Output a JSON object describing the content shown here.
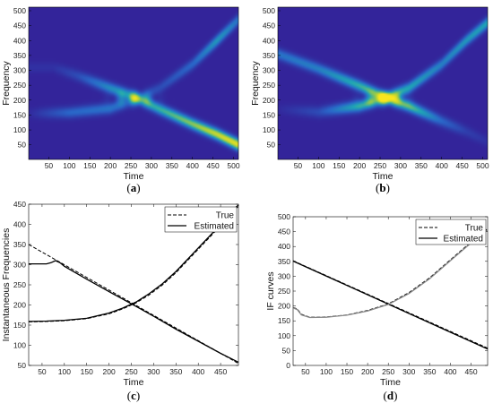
{
  "chart_data": [
    {
      "id": "a",
      "type": "heatmap",
      "caption": "a",
      "xlabel": "Time",
      "ylabel": "Frequency",
      "xlim": [
        1,
        512
      ],
      "ylim": [
        1,
        512
      ],
      "xticks": [
        50,
        100,
        150,
        200,
        250,
        300,
        350,
        400,
        450,
        500
      ],
      "yticks": [
        50,
        100,
        150,
        200,
        250,
        300,
        350,
        400,
        450,
        500
      ],
      "colormap": [
        "#33249a",
        "#2a67c9",
        "#1fa6b5",
        "#a9cf3b",
        "#f9e51e"
      ],
      "ridges": [
        {
          "points": [
            [
              1,
              155
            ],
            [
              100,
              158
            ],
            [
              200,
              172
            ],
            [
              260,
              200
            ],
            [
              320,
              240
            ],
            [
              400,
              320
            ],
            [
              460,
              400
            ],
            [
              512,
              470
            ]
          ],
          "amplitude": [
            0.02,
            0.25,
            0.3,
            0.2,
            0.15,
            0.25,
            0.45,
            0.3
          ]
        },
        {
          "points": [
            [
              60,
              310
            ],
            [
              120,
              282
            ],
            [
              200,
              240
            ],
            [
              260,
              210
            ],
            [
              320,
              170
            ],
            [
              400,
              120
            ],
            [
              460,
              85
            ],
            [
              512,
              50
            ]
          ],
          "amplitude": [
            0.05,
            0.15,
            0.4,
            0.5,
            0.55,
            0.7,
            0.85,
            0.95
          ]
        }
      ]
    },
    {
      "id": "b",
      "type": "heatmap",
      "caption": "b",
      "xlabel": "Time",
      "ylabel": "Frequency",
      "xlim": [
        1,
        512
      ],
      "ylim": [
        1,
        512
      ],
      "xticks": [
        50,
        100,
        150,
        200,
        250,
        300,
        350,
        400,
        450,
        500
      ],
      "yticks": [
        50,
        100,
        150,
        200,
        250,
        300,
        350,
        400,
        450,
        500
      ],
      "colormap": [
        "#33249a",
        "#2a67c9",
        "#1fa6b5",
        "#a9cf3b",
        "#f9e51e"
      ],
      "ridges": [
        {
          "points": [
            [
              1,
              355
            ],
            [
              100,
              305
            ],
            [
              200,
              248
            ],
            [
              260,
              210
            ],
            [
              320,
              180
            ],
            [
              400,
              130
            ],
            [
              460,
              95
            ],
            [
              512,
              60
            ]
          ],
          "amplitude": [
            0.3,
            0.35,
            0.55,
            0.7,
            0.65,
            0.25,
            0.1,
            0.05
          ]
        },
        {
          "points": [
            [
              1,
              170
            ],
            [
              100,
              160
            ],
            [
              200,
              180
            ],
            [
              260,
              205
            ],
            [
              320,
              240
            ],
            [
              400,
              320
            ],
            [
              460,
              400
            ],
            [
              512,
              460
            ]
          ],
          "amplitude": [
            0.02,
            0.15,
            0.55,
            0.6,
            0.5,
            0.35,
            0.45,
            0.5
          ]
        }
      ]
    },
    {
      "id": "c",
      "type": "line",
      "caption": "c",
      "xlabel": "Time",
      "ylabel": "Instantaneous Frequencies",
      "xlim": [
        20,
        490
      ],
      "ylim": [
        50,
        450
      ],
      "xticks": [
        50,
        100,
        150,
        200,
        250,
        300,
        350,
        400,
        450
      ],
      "yticks": [
        50,
        100,
        150,
        200,
        250,
        300,
        350,
        400,
        450
      ],
      "legend": "top-right",
      "series": [
        {
          "name": "True",
          "style": "dashed",
          "color": "#000000",
          "x": [
            20,
            490
          ],
          "y": [
            350,
            55
          ]
        },
        {
          "name": "True",
          "style": "dashed",
          "color": "#000000",
          "x": [
            20,
            60,
            100,
            150,
            200,
            230,
            260,
            290,
            320,
            350,
            380,
            410,
            440,
            470,
            490
          ],
          "y": [
            158,
            159,
            161,
            166,
            178,
            190,
            205,
            225,
            250,
            280,
            315,
            350,
            385,
            425,
            445
          ]
        },
        {
          "name": "Estimated",
          "style": "solid",
          "color": "#000000",
          "x": [
            20,
            60,
            70,
            80,
            90,
            100,
            150,
            200,
            260,
            300,
            350,
            400,
            450,
            490
          ],
          "y": [
            302,
            302,
            305,
            310,
            305,
            296,
            264,
            233,
            197,
            172,
            140,
            110,
            80,
            58
          ]
        },
        {
          "name": "Estimated",
          "style": "solid",
          "color": "#000000",
          "x": [
            20,
            60,
            100,
            150,
            200,
            230,
            260,
            290,
            320,
            350,
            380,
            410,
            440,
            470,
            490
          ],
          "y": [
            159,
            160,
            162,
            167,
            180,
            192,
            207,
            228,
            253,
            283,
            318,
            353,
            388,
            428,
            448
          ]
        }
      ]
    },
    {
      "id": "d",
      "type": "line",
      "caption": "d",
      "xlabel": "Time",
      "ylabel": "IF curves",
      "xlim": [
        20,
        490
      ],
      "ylim": [
        0,
        500
      ],
      "xticks": [
        50,
        100,
        150,
        200,
        250,
        300,
        350,
        400,
        450
      ],
      "yticks": [
        0,
        50,
        100,
        150,
        200,
        250,
        300,
        350,
        400,
        450,
        500
      ],
      "legend": "top-right",
      "series": [
        {
          "name": "True",
          "style": "dashed",
          "color": "#000000",
          "x": [
            20,
            490
          ],
          "y": [
            352,
            58
          ]
        },
        {
          "name": "True",
          "style": "dashed",
          "color": "#000000",
          "x": [
            20,
            30,
            40,
            60,
            100,
            150,
            200,
            250,
            300,
            350,
            400,
            450,
            490
          ],
          "y": [
            195,
            190,
            172,
            162,
            163,
            170,
            185,
            207,
            245,
            295,
            355,
            415,
            460
          ]
        },
        {
          "name": "Estimated",
          "style": "solid",
          "color": "#000000",
          "x": [
            20,
            490
          ],
          "y": [
            351,
            55
          ]
        },
        {
          "name": "Estimated",
          "style": "solid",
          "color": "#888888",
          "x": [
            20,
            30,
            40,
            60,
            100,
            150,
            200,
            250,
            300,
            350,
            400,
            450,
            490
          ],
          "y": [
            193,
            188,
            170,
            161,
            162,
            169,
            183,
            205,
            242,
            292,
            352,
            412,
            455
          ]
        }
      ]
    }
  ]
}
